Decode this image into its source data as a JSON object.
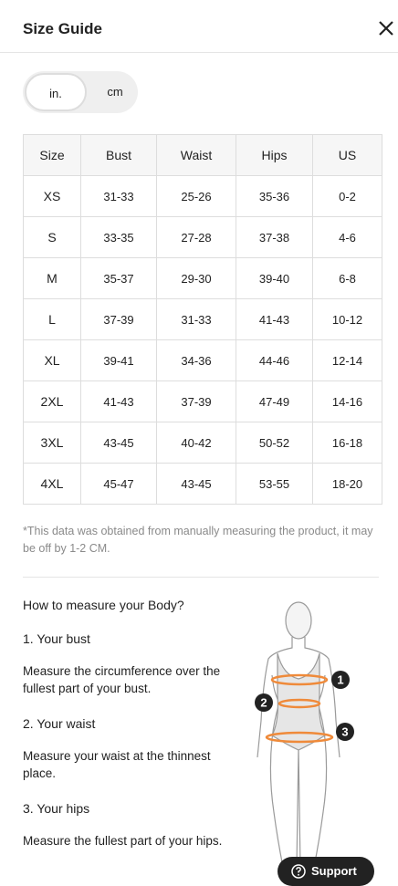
{
  "header": {
    "title": "Size Guide"
  },
  "units": {
    "options": [
      "in.",
      "cm"
    ]
  },
  "table": {
    "columns": [
      "Size",
      "Bust",
      "Waist",
      "Hips",
      "US"
    ],
    "rows": [
      [
        "XS",
        "31-33",
        "25-26",
        "35-36",
        "0-2"
      ],
      [
        "S",
        "33-35",
        "27-28",
        "37-38",
        "4-6"
      ],
      [
        "M",
        "35-37",
        "29-30",
        "39-40",
        "6-8"
      ],
      [
        "L",
        "37-39",
        "31-33",
        "41-43",
        "10-12"
      ],
      [
        "XL",
        "39-41",
        "34-36",
        "44-46",
        "12-14"
      ],
      [
        "2XL",
        "41-43",
        "37-39",
        "47-49",
        "14-16"
      ],
      [
        "3XL",
        "43-45",
        "40-42",
        "50-52",
        "16-18"
      ],
      [
        "4XL",
        "45-47",
        "43-45",
        "53-55",
        "18-20"
      ]
    ]
  },
  "note": "*This data was obtained from manually measuring the product, it may be off by 1-2 CM.",
  "measure": {
    "title": "How to measure your Body?",
    "items": [
      {
        "heading": "1. Your bust",
        "text": "Measure the circumference over the fullest part of your bust."
      },
      {
        "heading": "2. Your waist",
        "text": "Measure your waist at the thinnest place."
      },
      {
        "heading": "3. Your hips",
        "text": "Measure the fullest part of your hips."
      }
    ]
  },
  "figure": {
    "markers": [
      "1",
      "2",
      "3"
    ]
  },
  "support": "Support"
}
